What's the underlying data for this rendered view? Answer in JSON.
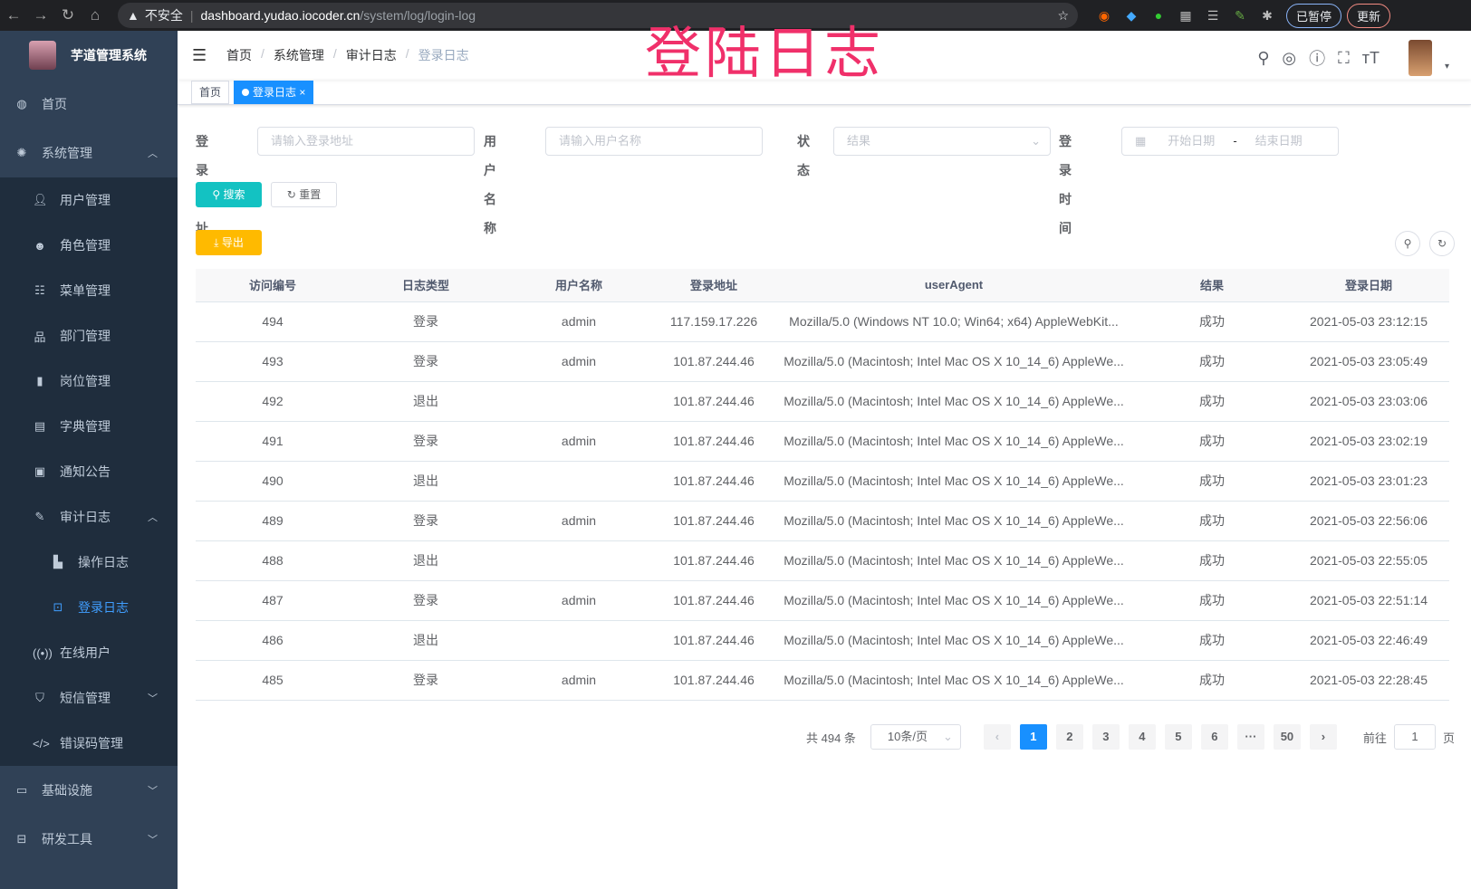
{
  "browser": {
    "not_secure": "不安全",
    "host": "dashboard.yudao.iocoder.cn",
    "path": "/system/log/login-log",
    "paused": "已暂停",
    "update": "更新"
  },
  "overlay_title": "登陆日志",
  "sidebar": {
    "title": "芋道管理系统",
    "items": [
      {
        "label": "首页",
        "icon": "dashboard-icon"
      },
      {
        "label": "系统管理",
        "icon": "gear-icon",
        "expanded": true,
        "children": [
          {
            "label": "用户管理",
            "icon": "user-icon"
          },
          {
            "label": "角色管理",
            "icon": "peoples-icon"
          },
          {
            "label": "菜单管理",
            "icon": "tree-table-icon"
          },
          {
            "label": "部门管理",
            "icon": "tree-icon"
          },
          {
            "label": "岗位管理",
            "icon": "post-icon"
          },
          {
            "label": "字典管理",
            "icon": "dict-icon"
          },
          {
            "label": "通知公告",
            "icon": "message-icon"
          },
          {
            "label": "审计日志",
            "icon": "log-icon",
            "expanded": true,
            "children": [
              {
                "label": "操作日志",
                "icon": "form-icon"
              },
              {
                "label": "登录日志",
                "icon": "logininfor-icon",
                "active": true
              }
            ]
          },
          {
            "label": "在线用户",
            "icon": "online-icon"
          },
          {
            "label": "短信管理",
            "icon": "shield-icon"
          },
          {
            "label": "错误码管理",
            "icon": "code-icon"
          }
        ]
      },
      {
        "label": "基础设施",
        "icon": "monitor-icon"
      },
      {
        "label": "研发工具",
        "icon": "tool-icon"
      }
    ]
  },
  "breadcrumb": [
    "首页",
    "系统管理",
    "审计日志",
    "登录日志"
  ],
  "tags": [
    {
      "label": "首页"
    },
    {
      "label": "登录日志",
      "active": true
    }
  ],
  "search": {
    "addr_label": "登录地址",
    "addr_placeholder": "请输入登录地址",
    "user_label": "用户名称",
    "user_placeholder": "请输入用户名称",
    "status_label": "状态",
    "status_placeholder": "结果",
    "time_label": "登录时间",
    "start_placeholder": "开始日期",
    "range_sep": "-",
    "end_placeholder": "结束日期",
    "search_btn": "搜索",
    "reset_btn": "重置",
    "export_btn": "导出"
  },
  "table": {
    "columns": [
      "访问编号",
      "日志类型",
      "用户名称",
      "登录地址",
      "userAgent",
      "结果",
      "登录日期"
    ],
    "rows": [
      [
        "494",
        "登录",
        "admin",
        "117.159.17.226",
        "Mozilla/5.0 (Windows NT 10.0; Win64; x64) AppleWebKit...",
        "成功",
        "2021-05-03 23:12:15"
      ],
      [
        "493",
        "登录",
        "admin",
        "101.87.244.46",
        "Mozilla/5.0 (Macintosh; Intel Mac OS X 10_14_6) AppleWe...",
        "成功",
        "2021-05-03 23:05:49"
      ],
      [
        "492",
        "退出",
        "",
        "101.87.244.46",
        "Mozilla/5.0 (Macintosh; Intel Mac OS X 10_14_6) AppleWe...",
        "成功",
        "2021-05-03 23:03:06"
      ],
      [
        "491",
        "登录",
        "admin",
        "101.87.244.46",
        "Mozilla/5.0 (Macintosh; Intel Mac OS X 10_14_6) AppleWe...",
        "成功",
        "2021-05-03 23:02:19"
      ],
      [
        "490",
        "退出",
        "",
        "101.87.244.46",
        "Mozilla/5.0 (Macintosh; Intel Mac OS X 10_14_6) AppleWe...",
        "成功",
        "2021-05-03 23:01:23"
      ],
      [
        "489",
        "登录",
        "admin",
        "101.87.244.46",
        "Mozilla/5.0 (Macintosh; Intel Mac OS X 10_14_6) AppleWe...",
        "成功",
        "2021-05-03 22:56:06"
      ],
      [
        "488",
        "退出",
        "",
        "101.87.244.46",
        "Mozilla/5.0 (Macintosh; Intel Mac OS X 10_14_6) AppleWe...",
        "成功",
        "2021-05-03 22:55:05"
      ],
      [
        "487",
        "登录",
        "admin",
        "101.87.244.46",
        "Mozilla/5.0 (Macintosh; Intel Mac OS X 10_14_6) AppleWe...",
        "成功",
        "2021-05-03 22:51:14"
      ],
      [
        "486",
        "退出",
        "",
        "101.87.244.46",
        "Mozilla/5.0 (Macintosh; Intel Mac OS X 10_14_6) AppleWe...",
        "成功",
        "2021-05-03 22:46:49"
      ],
      [
        "485",
        "登录",
        "admin",
        "101.87.244.46",
        "Mozilla/5.0 (Macintosh; Intel Mac OS X 10_14_6) AppleWe...",
        "成功",
        "2021-05-03 22:28:45"
      ]
    ]
  },
  "pagination": {
    "total": "共 494 条",
    "page_size": "10条/页",
    "pages": [
      "1",
      "2",
      "3",
      "4",
      "5",
      "6",
      "···",
      "50"
    ],
    "current": "1",
    "goto_label": "前往",
    "goto_value": "1",
    "page_unit": "页"
  }
}
